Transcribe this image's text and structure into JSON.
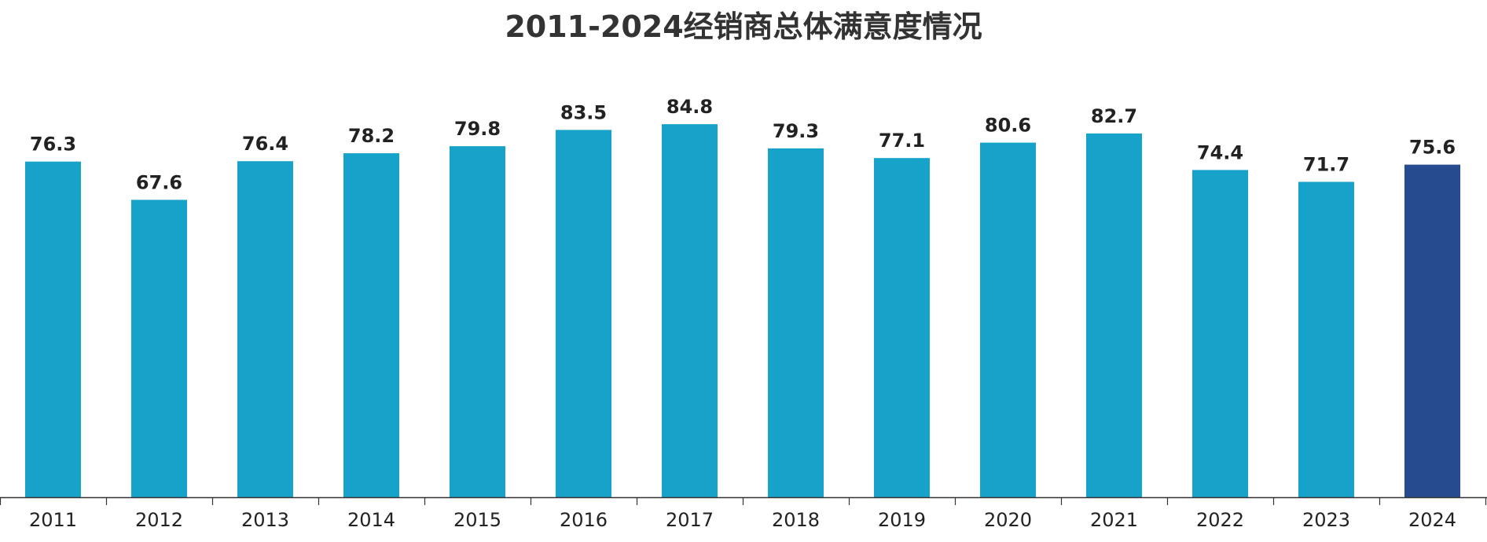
{
  "chart_data": {
    "type": "bar",
    "title": "2011-2024经销商总体满意度情况",
    "xlabel": "",
    "ylabel": "",
    "categories": [
      "2011",
      "2012",
      "2013",
      "2014",
      "2015",
      "2016",
      "2017",
      "2018",
      "2019",
      "2020",
      "2021",
      "2022",
      "2023",
      "2024"
    ],
    "values": [
      76.3,
      67.6,
      76.4,
      78.2,
      79.8,
      83.5,
      84.8,
      79.3,
      77.1,
      80.6,
      82.7,
      74.4,
      71.7,
      75.6
    ],
    "ylim": [
      0,
      90
    ],
    "grid": false,
    "legend": "none",
    "colors": {
      "default_bar": "#17a2c9",
      "highlight_bar": "#264b8e",
      "axis": "#333333"
    },
    "highlight_category": "2024"
  }
}
